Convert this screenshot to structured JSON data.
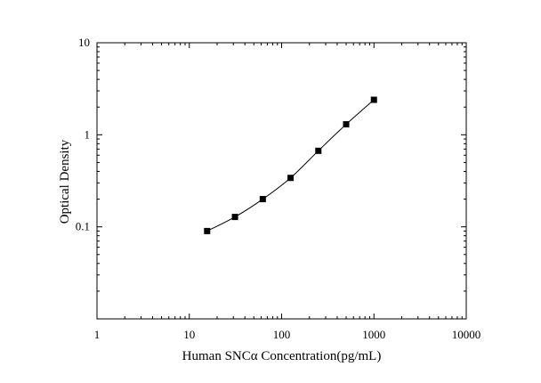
{
  "chart_data": {
    "type": "scatter",
    "xscale": "log",
    "yscale": "log",
    "xlabel": "Human SNCα Concentration(pg/mL)",
    "ylabel": "Optical Density",
    "xlim": [
      1,
      10000
    ],
    "ylim": [
      0.01,
      10
    ],
    "xticks": [
      1,
      10,
      100,
      1000,
      10000
    ],
    "xtick_labels": [
      "1",
      "10",
      "100",
      "1000",
      "10000"
    ],
    "yticks": [
      0.1,
      1,
      10
    ],
    "ytick_labels": [
      "0.1",
      "1",
      "10"
    ],
    "grid": false,
    "series": [
      {
        "x": [
          15.6,
          31.25,
          62.5,
          125,
          250,
          500,
          1000
        ],
        "y": [
          0.09,
          0.128,
          0.2,
          0.34,
          0.67,
          1.3,
          2.4
        ],
        "marker": "square",
        "fit_line": true
      }
    ],
    "colors": {
      "marker": "#000000",
      "line": "#000000",
      "axis": "#000000"
    }
  }
}
